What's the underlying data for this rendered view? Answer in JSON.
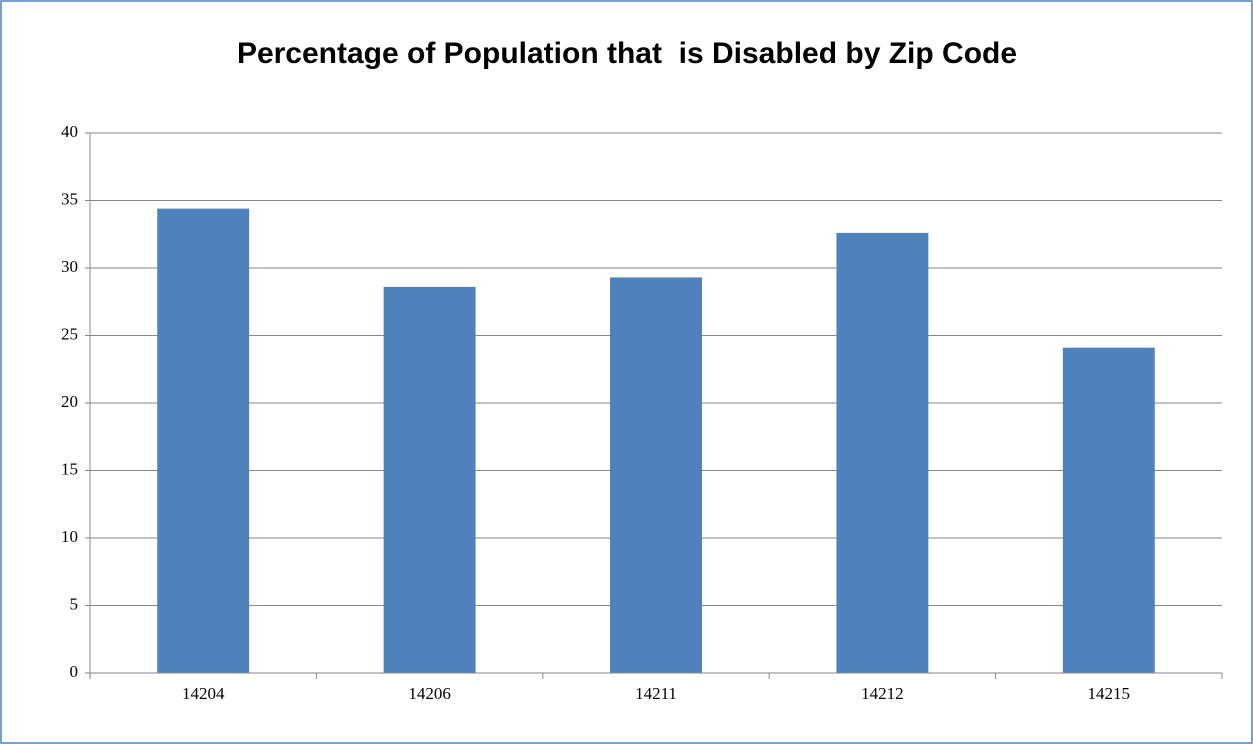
{
  "chart_data": {
    "type": "bar",
    "title": "Percentage of Population that  is Disabled by Zip Code",
    "categories": [
      "14204",
      "14206",
      "14211",
      "14212",
      "14215"
    ],
    "values": [
      34.4,
      28.6,
      29.3,
      32.6,
      24.1
    ],
    "color": "#4f81bd",
    "ylim": [
      0,
      40
    ],
    "yticks": [
      0,
      5,
      10,
      15,
      20,
      25,
      30,
      35,
      40
    ],
    "grid": true
  }
}
